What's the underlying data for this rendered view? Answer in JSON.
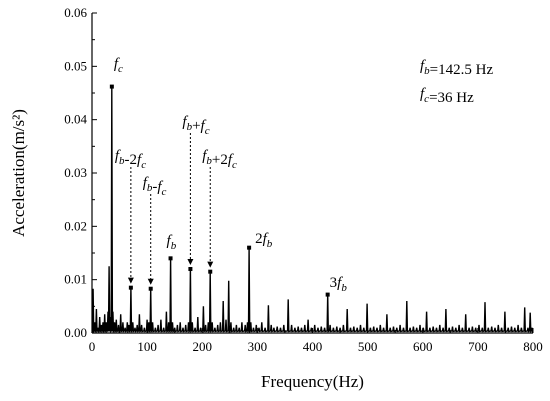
{
  "chart_data": {
    "type": "line",
    "xlabel": "Frequency(Hz)",
    "ylabel": "Acceleration(m/s²)",
    "xlim": [
      0,
      800
    ],
    "ylim": [
      0,
      0.06
    ],
    "x_ticks": [
      0,
      100,
      200,
      300,
      400,
      500,
      600,
      700,
      800
    ],
    "y_ticks": [
      0.0,
      0.01,
      0.02,
      0.03,
      0.04,
      0.05,
      0.06
    ],
    "y_tick_labels": [
      "0.00",
      "0.01",
      "0.02",
      "0.03",
      "0.04",
      "0.05",
      "0.06"
    ],
    "grid": false,
    "info_box": {
      "fb": "f_b=142.5 Hz",
      "fc": "f_c=36 Hz"
    },
    "peaks": [
      {
        "x": 36,
        "y": 0.0462,
        "label": "f_c"
      },
      {
        "x": 70.5,
        "y": 0.0085,
        "label": "f_b-2f_c"
      },
      {
        "x": 106.5,
        "y": 0.0083,
        "label": "f_b-f_c"
      },
      {
        "x": 142.5,
        "y": 0.014,
        "label": "f_b"
      },
      {
        "x": 178.5,
        "y": 0.012,
        "label": "f_b+f_c"
      },
      {
        "x": 214.5,
        "y": 0.0115,
        "label": "f_b+2f_c"
      },
      {
        "x": 285,
        "y": 0.016,
        "label": "2f_b"
      },
      {
        "x": 427.5,
        "y": 0.0072,
        "label": "3f_b"
      }
    ],
    "series": [
      {
        "points": [
          [
            2,
            0.0083
          ],
          [
            5,
            0.002
          ],
          [
            8,
            0.0045
          ],
          [
            11,
            0.001
          ],
          [
            14,
            0.003
          ],
          [
            17,
            0.0015
          ],
          [
            20,
            0.002
          ],
          [
            23,
            0.0035
          ],
          [
            26,
            0.002
          ],
          [
            29,
            0.004
          ],
          [
            31,
            0.0125
          ],
          [
            33,
            0.003
          ],
          [
            36,
            0.0462
          ],
          [
            38,
            0.004
          ],
          [
            41,
            0.002
          ],
          [
            44,
            0.0025
          ],
          [
            48,
            0.0015
          ],
          [
            52,
            0.0035
          ],
          [
            56,
            0.002
          ],
          [
            60,
            0.001
          ],
          [
            64,
            0.002
          ],
          [
            67,
            0.0015
          ],
          [
            70.5,
            0.0085
          ],
          [
            74,
            0.002
          ],
          [
            78,
            0.001
          ],
          [
            82,
            0.0015
          ],
          [
            86,
            0.0035
          ],
          [
            90,
            0.0015
          ],
          [
            95,
            0.001
          ],
          [
            100,
            0.0025
          ],
          [
            103,
            0.002
          ],
          [
            106.5,
            0.0083
          ],
          [
            110,
            0.002
          ],
          [
            115,
            0.001
          ],
          [
            120,
            0.0015
          ],
          [
            125,
            0.0025
          ],
          [
            130,
            0.001
          ],
          [
            135,
            0.004
          ],
          [
            139,
            0.002
          ],
          [
            142.5,
            0.014
          ],
          [
            146,
            0.002
          ],
          [
            150,
            0.001
          ],
          [
            155,
            0.0015
          ],
          [
            160,
            0.002
          ],
          [
            165,
            0.001
          ],
          [
            170,
            0.0015
          ],
          [
            175,
            0.002
          ],
          [
            178.5,
            0.012
          ],
          [
            182,
            0.002
          ],
          [
            187,
            0.001
          ],
          [
            192,
            0.003
          ],
          [
            197,
            0.001
          ],
          [
            202,
            0.005
          ],
          [
            206,
            0.0015
          ],
          [
            211,
            0.002
          ],
          [
            214.5,
            0.0115
          ],
          [
            218,
            0.002
          ],
          [
            223,
            0.001
          ],
          [
            228,
            0.0015
          ],
          [
            233,
            0.002
          ],
          [
            238,
            0.006
          ],
          [
            243,
            0.0025
          ],
          [
            248,
            0.0098
          ],
          [
            252,
            0.002
          ],
          [
            257,
            0.001
          ],
          [
            262,
            0.0015
          ],
          [
            267,
            0.001
          ],
          [
            272,
            0.002
          ],
          [
            278,
            0.0015
          ],
          [
            282,
            0.002
          ],
          [
            285,
            0.016
          ],
          [
            288,
            0.002
          ],
          [
            293,
            0.001
          ],
          [
            298,
            0.0015
          ],
          [
            303,
            0.001
          ],
          [
            308,
            0.002
          ],
          [
            314,
            0.001
          ],
          [
            320,
            0.0052
          ],
          [
            325,
            0.0015
          ],
          [
            330,
            0.001
          ],
          [
            336,
            0.0012
          ],
          [
            342,
            0.001
          ],
          [
            348,
            0.0015
          ],
          [
            356,
            0.0063
          ],
          [
            362,
            0.0015
          ],
          [
            368,
            0.001
          ],
          [
            374,
            0.0012
          ],
          [
            380,
            0.001
          ],
          [
            386,
            0.0015
          ],
          [
            392,
            0.0025
          ],
          [
            398,
            0.001
          ],
          [
            404,
            0.0015
          ],
          [
            410,
            0.001
          ],
          [
            416,
            0.0012
          ],
          [
            422,
            0.001
          ],
          [
            427.5,
            0.0072
          ],
          [
            432,
            0.0015
          ],
          [
            438,
            0.001
          ],
          [
            444,
            0.0012
          ],
          [
            450,
            0.001
          ],
          [
            456,
            0.0015
          ],
          [
            463,
            0.0045
          ],
          [
            469,
            0.001
          ],
          [
            475,
            0.0012
          ],
          [
            481,
            0.001
          ],
          [
            487,
            0.0015
          ],
          [
            493,
            0.001
          ],
          [
            499,
            0.0055
          ],
          [
            505,
            0.001
          ],
          [
            511,
            0.0012
          ],
          [
            517,
            0.001
          ],
          [
            523,
            0.0015
          ],
          [
            529,
            0.001
          ],
          [
            535,
            0.0035
          ],
          [
            541,
            0.001
          ],
          [
            547,
            0.0012
          ],
          [
            553,
            0.001
          ],
          [
            559,
            0.0015
          ],
          [
            565,
            0.001
          ],
          [
            571,
            0.006
          ],
          [
            577,
            0.001
          ],
          [
            583,
            0.0012
          ],
          [
            589,
            0.001
          ],
          [
            595,
            0.0015
          ],
          [
            601,
            0.001
          ],
          [
            607,
            0.004
          ],
          [
            613,
            0.001
          ],
          [
            619,
            0.0012
          ],
          [
            625,
            0.001
          ],
          [
            631,
            0.0015
          ],
          [
            637,
            0.001
          ],
          [
            642,
            0.0045
          ],
          [
            648,
            0.001
          ],
          [
            654,
            0.0012
          ],
          [
            660,
            0.001
          ],
          [
            666,
            0.0015
          ],
          [
            672,
            0.001
          ],
          [
            678,
            0.0035
          ],
          [
            684,
            0.001
          ],
          [
            690,
            0.0012
          ],
          [
            696,
            0.001
          ],
          [
            702,
            0.0015
          ],
          [
            708,
            0.001
          ],
          [
            713,
            0.0058
          ],
          [
            719,
            0.001
          ],
          [
            725,
            0.0012
          ],
          [
            731,
            0.001
          ],
          [
            737,
            0.0015
          ],
          [
            743,
            0.001
          ],
          [
            749,
            0.004
          ],
          [
            755,
            0.001
          ],
          [
            761,
            0.0012
          ],
          [
            767,
            0.001
          ],
          [
            773,
            0.0015
          ],
          [
            779,
            0.001
          ],
          [
            785,
            0.0048
          ],
          [
            791,
            0.001
          ],
          [
            795,
            0.0038
          ],
          [
            798,
            0.001
          ]
        ]
      }
    ]
  }
}
